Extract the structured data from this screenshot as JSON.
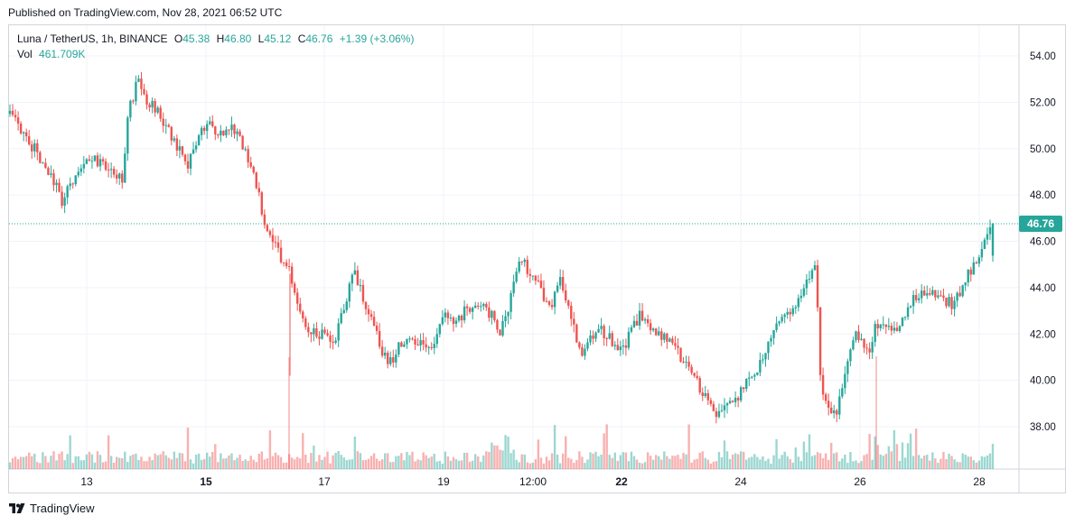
{
  "header": {
    "published": "Published on TradingView.com, Nov 28, 2021 06:52 UTC"
  },
  "legend": {
    "symbol": "Luna / TetherUS, 1h, BINANCE",
    "o_label": "O",
    "o_val": "45.38",
    "h_label": "H",
    "h_val": "46.80",
    "l_label": "L",
    "l_val": "45.12",
    "c_label": "C",
    "c_val": "46.76",
    "change": "+1.39 (+3.06%)",
    "vol_label": "Vol",
    "vol_val": "461.709K"
  },
  "footer": {
    "brand": "TradingView"
  },
  "colors": {
    "up": "#26a69a",
    "down": "#ef5350",
    "grid": "#f0f3fa",
    "last_price_bg": "#26a69a"
  },
  "chart_data": {
    "type": "candlestick",
    "title": "Luna / TetherUS, 1h, BINANCE",
    "ylim": [
      36.4,
      55.0
    ],
    "y_ticks": [
      "54.00",
      "52.00",
      "50.00",
      "48.00",
      "46.00",
      "44.00",
      "42.00",
      "40.00",
      "38.00"
    ],
    "x_ticks": [
      "13",
      "15",
      "17",
      "19",
      "12:00",
      "22",
      "24",
      "26",
      "28"
    ],
    "last_price": "46.76",
    "grid": true,
    "price_path": {
      "x": [
        0,
        0.02,
        0.04,
        0.055,
        0.06,
        0.08,
        0.1,
        0.115,
        0.12,
        0.13,
        0.14,
        0.16,
        0.18,
        0.2,
        0.21,
        0.23,
        0.25,
        0.26,
        0.275,
        0.285,
        0.29,
        0.3,
        0.31,
        0.33,
        0.35,
        0.37,
        0.385,
        0.4,
        0.43,
        0.44,
        0.45,
        0.47,
        0.48,
        0.5,
        0.52,
        0.55,
        0.56,
        0.58,
        0.6,
        0.61,
        0.62,
        0.64,
        0.68,
        0.72,
        0.74,
        0.76,
        0.78,
        0.8,
        0.82,
        0.825,
        0.84,
        0.86,
        0.875,
        0.88,
        0.9,
        0.92,
        0.94,
        0.96,
        1.0
      ],
      "y": [
        51.5,
        50.3,
        49.0,
        47.5,
        48.5,
        49.6,
        49.3,
        48.6,
        51.5,
        53.0,
        52.1,
        51.0,
        49.2,
        51.2,
        50.7,
        50.8,
        48.6,
        46.7,
        45.4,
        44.7,
        44.0,
        42.2,
        42.2,
        41.6,
        44.8,
        42.3,
        40.6,
        41.8,
        41.4,
        43.0,
        42.5,
        43.2,
        43.4,
        42.1,
        45.3,
        43.2,
        44.6,
        41.2,
        42.2,
        41.8,
        41.1,
        42.8,
        41.2,
        38.4,
        39.3,
        40.5,
        42.4,
        43.3,
        45.1,
        39.7,
        38.4,
        42.3,
        40.9,
        42.6,
        42.0,
        43.7,
        43.8,
        43.2,
        46.76
      ]
    },
    "volume_series": "volume per hourly candle; max approx. 1.45M"
  }
}
